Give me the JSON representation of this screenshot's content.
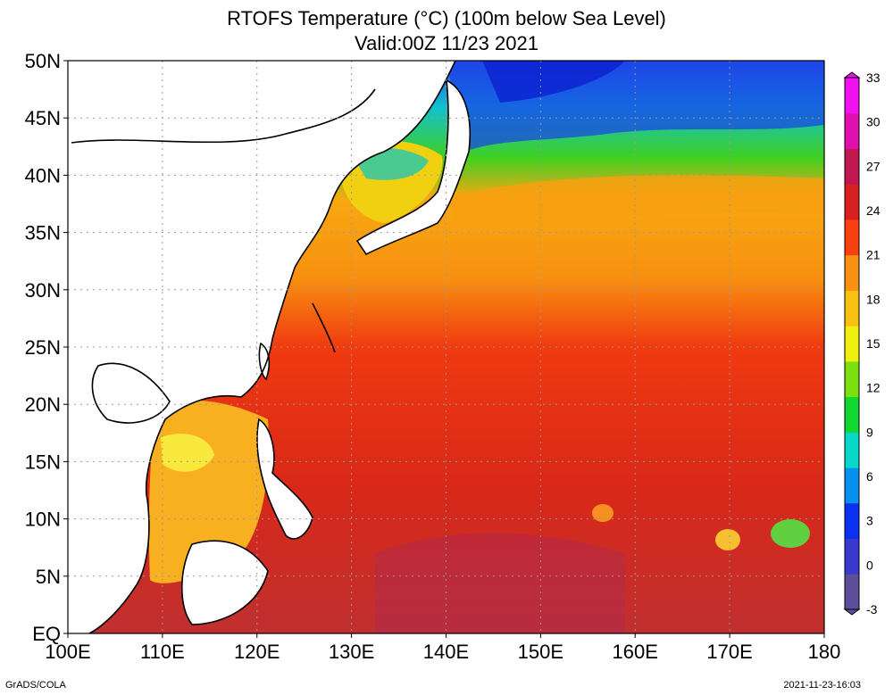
{
  "title": {
    "line1": "RTOFS Temperature (°C) (100m below Sea Level)",
    "line2": "Valid:00Z 11/23 2021"
  },
  "map": {
    "lon_range": [
      100,
      180
    ],
    "lat_range": [
      0,
      50
    ],
    "lon_labels": [
      "100E",
      "110E",
      "120E",
      "130E",
      "140E",
      "150E",
      "160E",
      "170E",
      "180"
    ],
    "lat_labels": [
      "EQ",
      "5N",
      "10N",
      "15N",
      "20N",
      "25N",
      "30N",
      "35N",
      "40N",
      "45N",
      "50N"
    ],
    "variable": "Temperature at 100m depth",
    "units": "°C"
  },
  "colorbar": {
    "tick_labels": [
      "-3",
      "0",
      "3",
      "6",
      "9",
      "12",
      "15",
      "18",
      "21",
      "24",
      "27",
      "30",
      "33"
    ],
    "colors": [
      "#5d4e9a",
      "#3a3ad0",
      "#0a30f0",
      "#0890f0",
      "#08d8c8",
      "#10d830",
      "#7ce010",
      "#f0f010",
      "#f8c010",
      "#f89010",
      "#f84010",
      "#d82020",
      "#c01850",
      "#e010b0",
      "#f010f0"
    ]
  },
  "footer": {
    "left": "GrADS/COLA",
    "right": "2021-11-23-16:03"
  }
}
